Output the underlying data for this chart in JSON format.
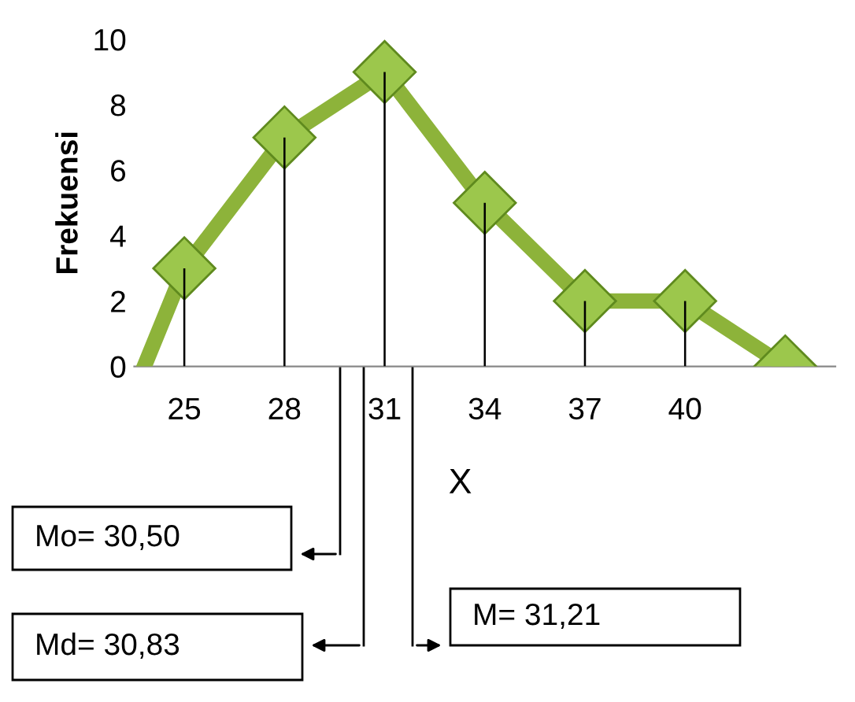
{
  "chart_data": {
    "type": "line",
    "xlabel": "X",
    "ylabel": "Frekuensi",
    "xlim": [
      23.5,
      44.5
    ],
    "ylim": [
      0,
      10
    ],
    "xticks": [
      25,
      28,
      31,
      34,
      37,
      40
    ],
    "yticks": [
      0,
      2,
      4,
      6,
      8,
      10
    ],
    "grid": false,
    "legend": false,
    "series": [
      {
        "type": "bar",
        "color": "#000000",
        "x": [
          25,
          28,
          31,
          34,
          37,
          40
        ],
        "values": [
          3,
          7,
          9,
          5,
          2,
          2
        ]
      },
      {
        "color": "#8db33a",
        "marker": "diamond",
        "x": [
          23.8,
          25,
          28,
          31,
          34,
          37,
          40,
          43
        ],
        "values": [
          0,
          3,
          7,
          9,
          5,
          2,
          2,
          0
        ]
      }
    ],
    "annotations": [
      "Mo= 30,50",
      "Md= 30,83",
      "M= 31,21"
    ]
  }
}
